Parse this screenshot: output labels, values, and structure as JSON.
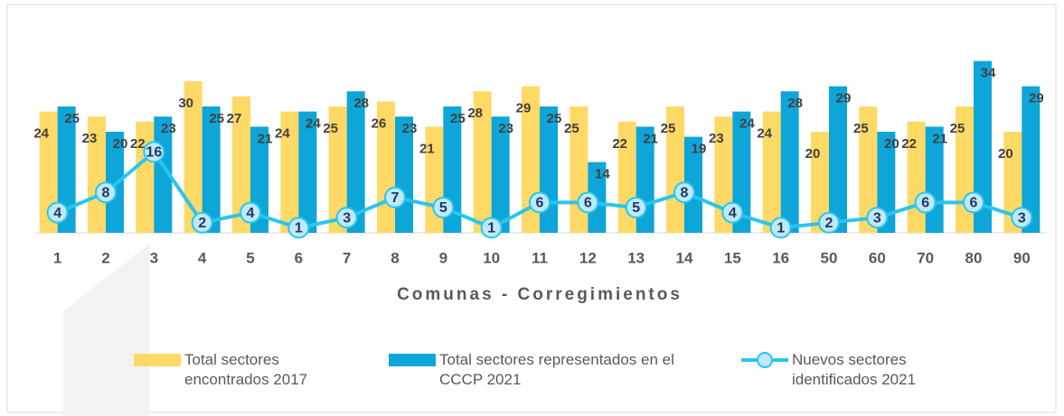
{
  "chart_data": {
    "type": "bar_line",
    "x_label": "Comunas - Corregimientos",
    "categories": [
      "1",
      "2",
      "3",
      "4",
      "5",
      "6",
      "7",
      "8",
      "9",
      "10",
      "11",
      "12",
      "13",
      "14",
      "15",
      "16",
      "50",
      "60",
      "70",
      "80",
      "90"
    ],
    "series": [
      {
        "name": "Total sectores encontrados 2017",
        "color": "#ffd966",
        "type": "bar",
        "values": [
          24,
          23,
          22,
          30,
          27,
          24,
          25,
          26,
          21,
          28,
          29,
          25,
          22,
          25,
          23,
          24,
          20,
          25,
          22,
          25,
          20
        ]
      },
      {
        "name": "Total sectores representados en el CCCP 2021",
        "color": "#0ea5d8",
        "type": "bar",
        "values": [
          25,
          20,
          23,
          25,
          21,
          24,
          28,
          23,
          25,
          23,
          25,
          14,
          21,
          19,
          24,
          28,
          29,
          20,
          21,
          34,
          29
        ]
      },
      {
        "name": "Nuevos sectores identificados 2021",
        "color": "#29c5f0",
        "type": "line",
        "values": [
          4,
          8,
          16,
          2,
          4,
          1,
          3,
          7,
          5,
          1,
          6,
          6,
          5,
          8,
          4,
          1,
          2,
          3,
          6,
          6,
          3
        ]
      }
    ],
    "ylim": [
      0,
      35
    ]
  }
}
